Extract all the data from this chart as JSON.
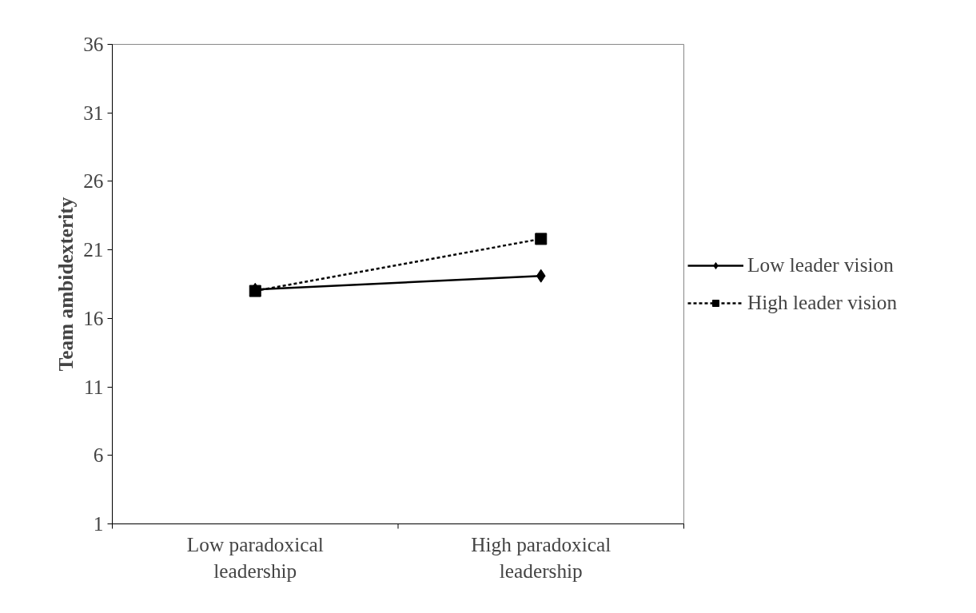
{
  "chart_data": {
    "type": "line",
    "ylabel": "Team ambidexterity",
    "categories": [
      "Low paradoxical\nleadership",
      "High paradoxical\nleadership"
    ],
    "ylim": [
      1,
      36
    ],
    "yticks": [
      1,
      6,
      11,
      16,
      21,
      26,
      31,
      36
    ],
    "grid": false,
    "legend": "right",
    "series": [
      {
        "name": "Low leader vision",
        "color": "#000000",
        "values": [
          18.1,
          19.1
        ],
        "marker": "diamond",
        "line_style": "solid"
      },
      {
        "name": "High leader vision",
        "color": "#000000",
        "values": [
          18.0,
          21.8
        ],
        "marker": "square",
        "line_style": "dashed"
      }
    ]
  }
}
